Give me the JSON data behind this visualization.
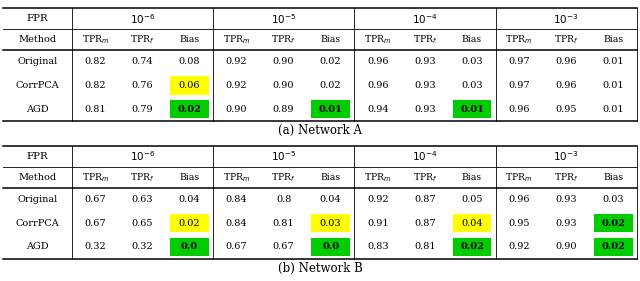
{
  "title_a": "(a) Network A",
  "title_b": "(b) Network B",
  "fpr_keys": [
    "fpr_1e-6",
    "fpr_1e-5",
    "fpr_1e-4",
    "fpr_1e-3"
  ],
  "fpr_labels": [
    "$10^{-6}$",
    "$10^{-5}$",
    "$10^{-4}$",
    "$10^{-3}$"
  ],
  "methods": [
    "Original",
    "CorrPCA",
    "AGD"
  ],
  "table_a": {
    "fpr_1e-6": {
      "Original": [
        0.82,
        0.74,
        "0.08",
        null
      ],
      "CorrPCA": [
        0.82,
        0.76,
        "0.06",
        "yellow"
      ],
      "AGD": [
        0.81,
        0.79,
        "0.02",
        "green"
      ]
    },
    "fpr_1e-5": {
      "Original": [
        0.92,
        0.9,
        "0.02",
        null
      ],
      "CorrPCA": [
        0.92,
        0.9,
        "0.02",
        null
      ],
      "AGD": [
        0.9,
        0.89,
        "0.01",
        "green"
      ]
    },
    "fpr_1e-4": {
      "Original": [
        0.96,
        0.93,
        "0.03",
        null
      ],
      "CorrPCA": [
        0.96,
        0.93,
        "0.03",
        null
      ],
      "AGD": [
        0.94,
        0.93,
        "0.01",
        "green"
      ]
    },
    "fpr_1e-3": {
      "Original": [
        0.97,
        0.96,
        "0.01",
        null
      ],
      "CorrPCA": [
        0.97,
        0.96,
        "0.01",
        null
      ],
      "AGD": [
        0.96,
        0.95,
        "0.01",
        null
      ]
    }
  },
  "table_b": {
    "fpr_1e-6": {
      "Original": [
        0.67,
        0.63,
        "0.04",
        null
      ],
      "CorrPCA": [
        0.67,
        0.65,
        "0.02",
        "yellow"
      ],
      "AGD": [
        0.32,
        0.32,
        "0.0",
        "green"
      ]
    },
    "fpr_1e-5": {
      "Original": [
        0.84,
        0.8,
        "0.04",
        null
      ],
      "CorrPCA": [
        0.84,
        0.81,
        "0.03",
        "yellow"
      ],
      "AGD": [
        0.67,
        0.67,
        "0.0",
        "green"
      ]
    },
    "fpr_1e-4": {
      "Original": [
        0.92,
        0.87,
        "0.05",
        null
      ],
      "CorrPCA": [
        0.91,
        0.87,
        "0.04",
        "yellow"
      ],
      "AGD": [
        0.83,
        0.81,
        "0.02",
        "green"
      ]
    },
    "fpr_1e-3": {
      "Original": [
        0.96,
        0.93,
        "0.03",
        null
      ],
      "CorrPCA": [
        0.95,
        0.93,
        "0.02",
        "green"
      ],
      "AGD": [
        0.92,
        0.9,
        "0.02",
        "green"
      ]
    }
  },
  "col_yellow": "#ffff00",
  "col_green": "#00cc00",
  "bg_color": "#f0f0f0",
  "line_color": "#333333",
  "text_color": "black",
  "fontsize_header": 7.5,
  "fontsize_subheader": 7.0,
  "fontsize_data": 7.0
}
